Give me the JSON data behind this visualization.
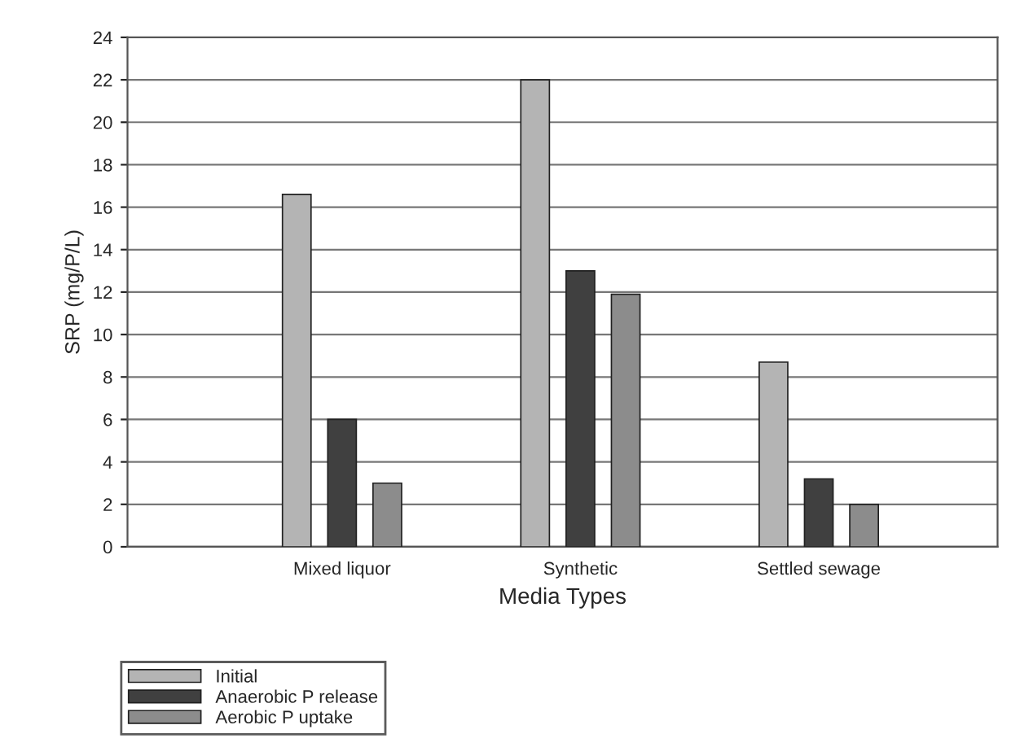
{
  "chart_data": {
    "type": "bar",
    "xlabel": "Media Types",
    "ylabel": "SRP (mg/P/L)",
    "categories": [
      "Mixed liquor",
      "Synthetic",
      "Settled sewage"
    ],
    "series": [
      {
        "name": "Initial",
        "color": "#b4b4b4",
        "values": [
          16.6,
          22.0,
          8.7
        ]
      },
      {
        "name": "Anaerobic P release",
        "color": "#404040",
        "values": [
          6.0,
          13.0,
          3.2
        ]
      },
      {
        "name": "Aerobic P uptake",
        "color": "#8c8c8c",
        "values": [
          3.0,
          11.9,
          2.0
        ]
      }
    ],
    "ylim": [
      0,
      24
    ],
    "yticks": [
      0,
      2,
      4,
      6,
      8,
      10,
      12,
      14,
      16,
      18,
      20,
      22,
      24
    ],
    "grid": "y",
    "legend": "bottom left"
  }
}
